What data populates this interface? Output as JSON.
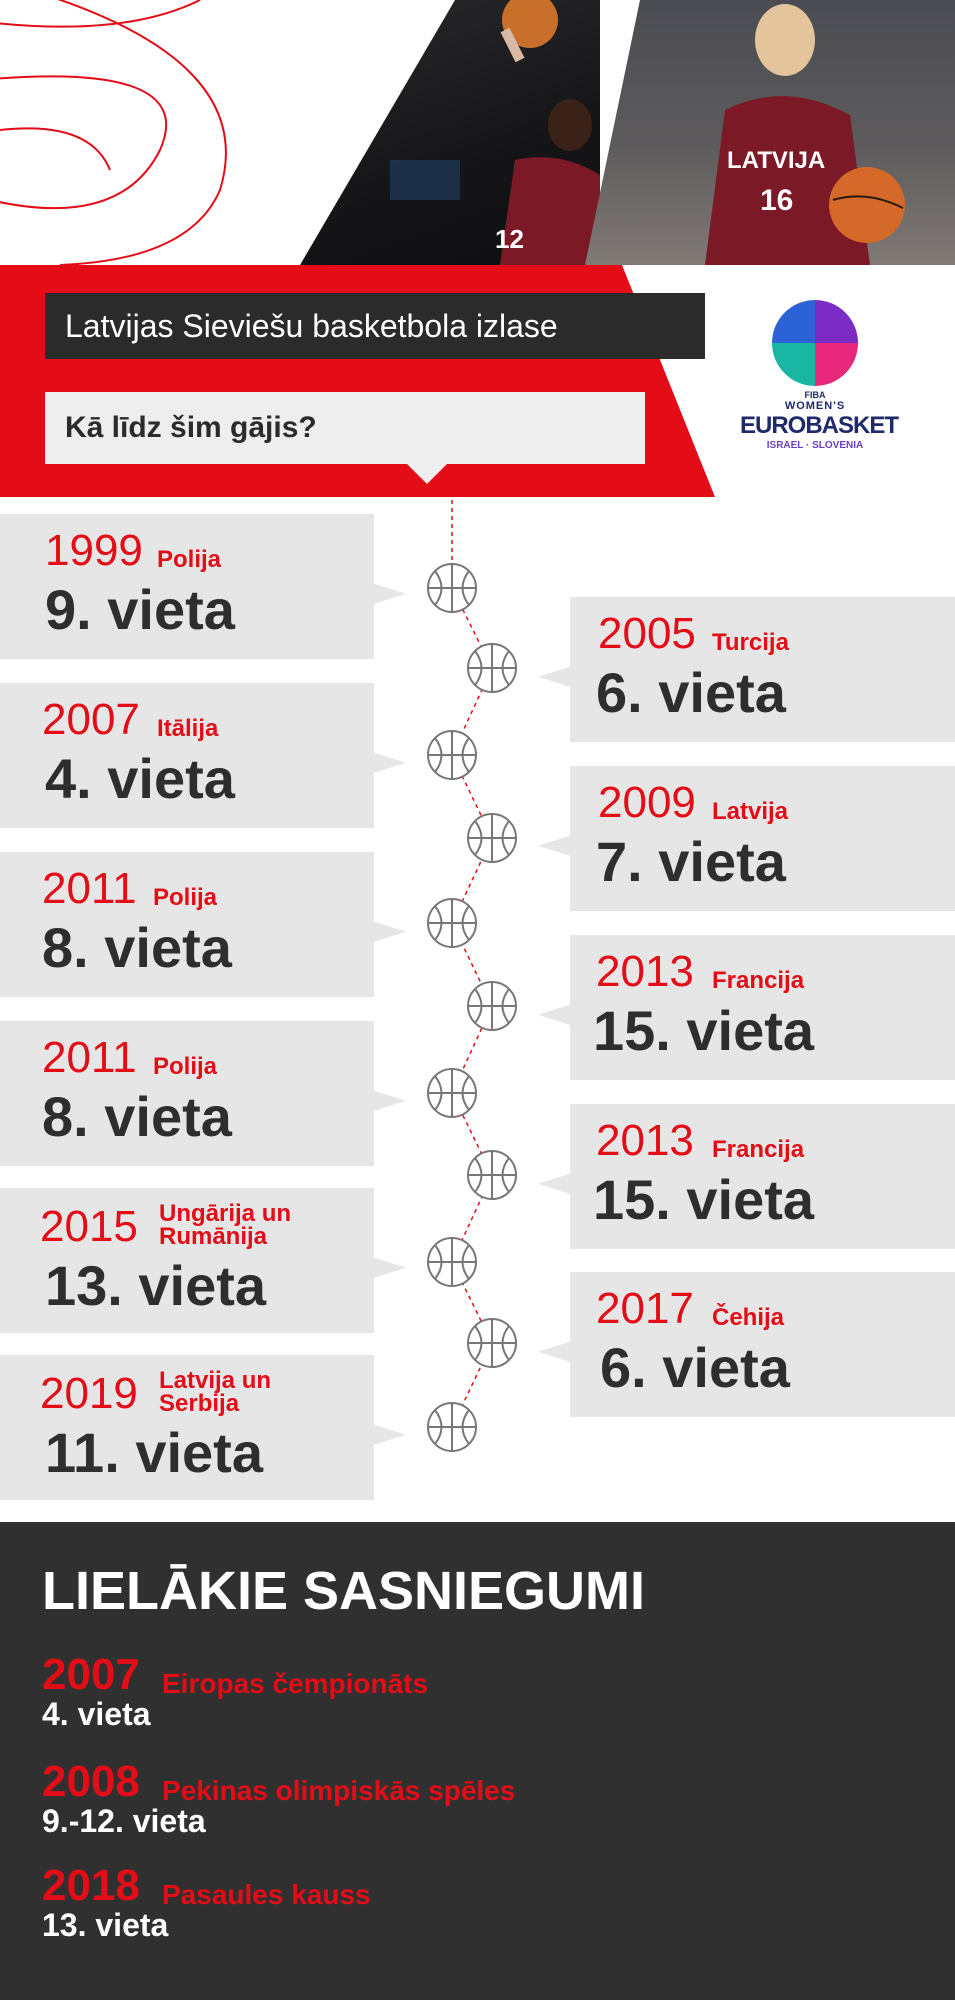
{
  "header": {
    "title": "Latvijas Sieviešu basketbola izlase",
    "subtitle": "Kā līdz šim gājis?"
  },
  "photos": {
    "left_jersey": "12",
    "right_jersey_text": "LATVIJA",
    "right_jersey_number": "16"
  },
  "logo": {
    "fiba": "FIBA",
    "women": "WOMEN'S",
    "brand": "EUROBASKET",
    "hosts": "ISRAEL · SLOVENIA"
  },
  "timeline": {
    "left": [
      {
        "year": "1999",
        "country": [
          "Polija"
        ],
        "place": "9. vieta"
      },
      {
        "year": "2007",
        "country": [
          "Itālija"
        ],
        "place": "4. vieta"
      },
      {
        "year": "2011",
        "country": [
          "Polija"
        ],
        "place": "8. vieta"
      },
      {
        "year": "2011",
        "country": [
          "Polija"
        ],
        "place": "8. vieta"
      },
      {
        "year": "2015",
        "country": [
          "Ungārija un",
          "Rumānija"
        ],
        "place": "13. vieta"
      },
      {
        "year": "2019",
        "country": [
          "Latvija un",
          "Serbija"
        ],
        "place": "11. vieta"
      }
    ],
    "right": [
      {
        "year": "2005",
        "country": [
          "Turcija"
        ],
        "place": "6. vieta"
      },
      {
        "year": "2009",
        "country": [
          "Latvija"
        ],
        "place": "7. vieta"
      },
      {
        "year": "2013",
        "country": [
          "Francija"
        ],
        "place": "15. vieta"
      },
      {
        "year": "2013",
        "country": [
          "Francija"
        ],
        "place": "15. vieta"
      },
      {
        "year": "2017",
        "country": [
          "Čehija"
        ],
        "place": "6. vieta"
      }
    ]
  },
  "achievements": {
    "title": "LIELĀKIE SASNIEGUMI",
    "items": [
      {
        "year": "2007",
        "event": "Eiropas čempionāts",
        "place": "4. vieta"
      },
      {
        "year": "2008",
        "event": "Pekinas olimpiskās spēles",
        "place": "9.-12. vieta"
      },
      {
        "year": "2018",
        "event": "Pasaules kauss",
        "place": "13. vieta"
      }
    ]
  },
  "colors": {
    "accent_red": "#e30c17",
    "dark": "#2b2b2b",
    "card_grey": "#e6e6e7"
  }
}
